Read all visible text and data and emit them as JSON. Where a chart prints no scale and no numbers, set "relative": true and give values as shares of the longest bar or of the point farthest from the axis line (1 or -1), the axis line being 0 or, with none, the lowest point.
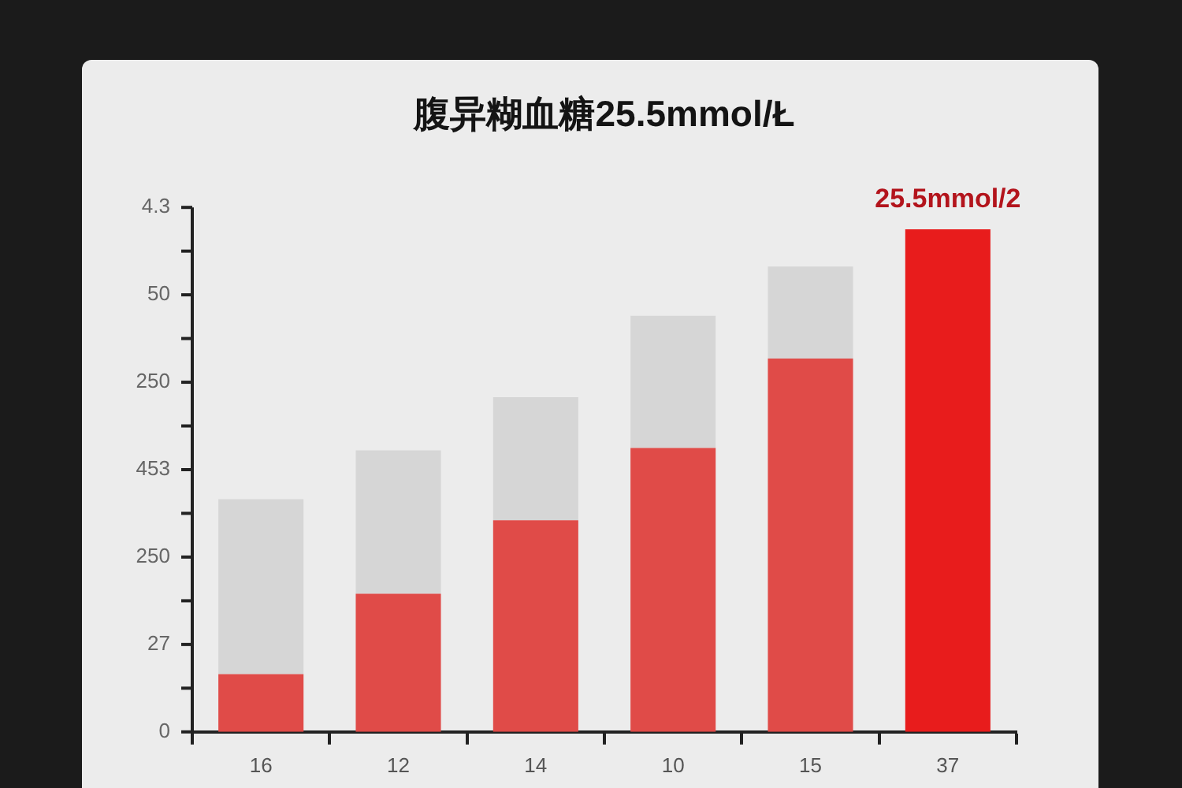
{
  "chart_data": {
    "type": "bar",
    "title": "腹异糊血糖25.5mmol/Ł",
    "categories": [
      "16",
      "12",
      "14",
      "10",
      "15",
      "37"
    ],
    "stacked": true,
    "series": [
      {
        "color": "#e04b48",
        "colors": [
          "#e04b48",
          "#e04b48",
          "#e04b48",
          "#e04b48",
          "#e04b48",
          "#e81c1c"
        ],
        "values": [
          0.115,
          0.275,
          0.421,
          0.565,
          0.743,
          1
        ]
      },
      {
        "color": "#d6d6d6",
        "values": [
          0.348,
          0.285,
          0.245,
          0.263,
          0.183,
          null
        ]
      }
    ],
    "relative": true,
    "legend": false,
    "annotations": [
      "4.3",
      "50",
      "250",
      "453",
      "250",
      "27",
      "0",
      {
        "text": "25.5mmol/2",
        "x": "37",
        "y": 1
      }
    ]
  }
}
